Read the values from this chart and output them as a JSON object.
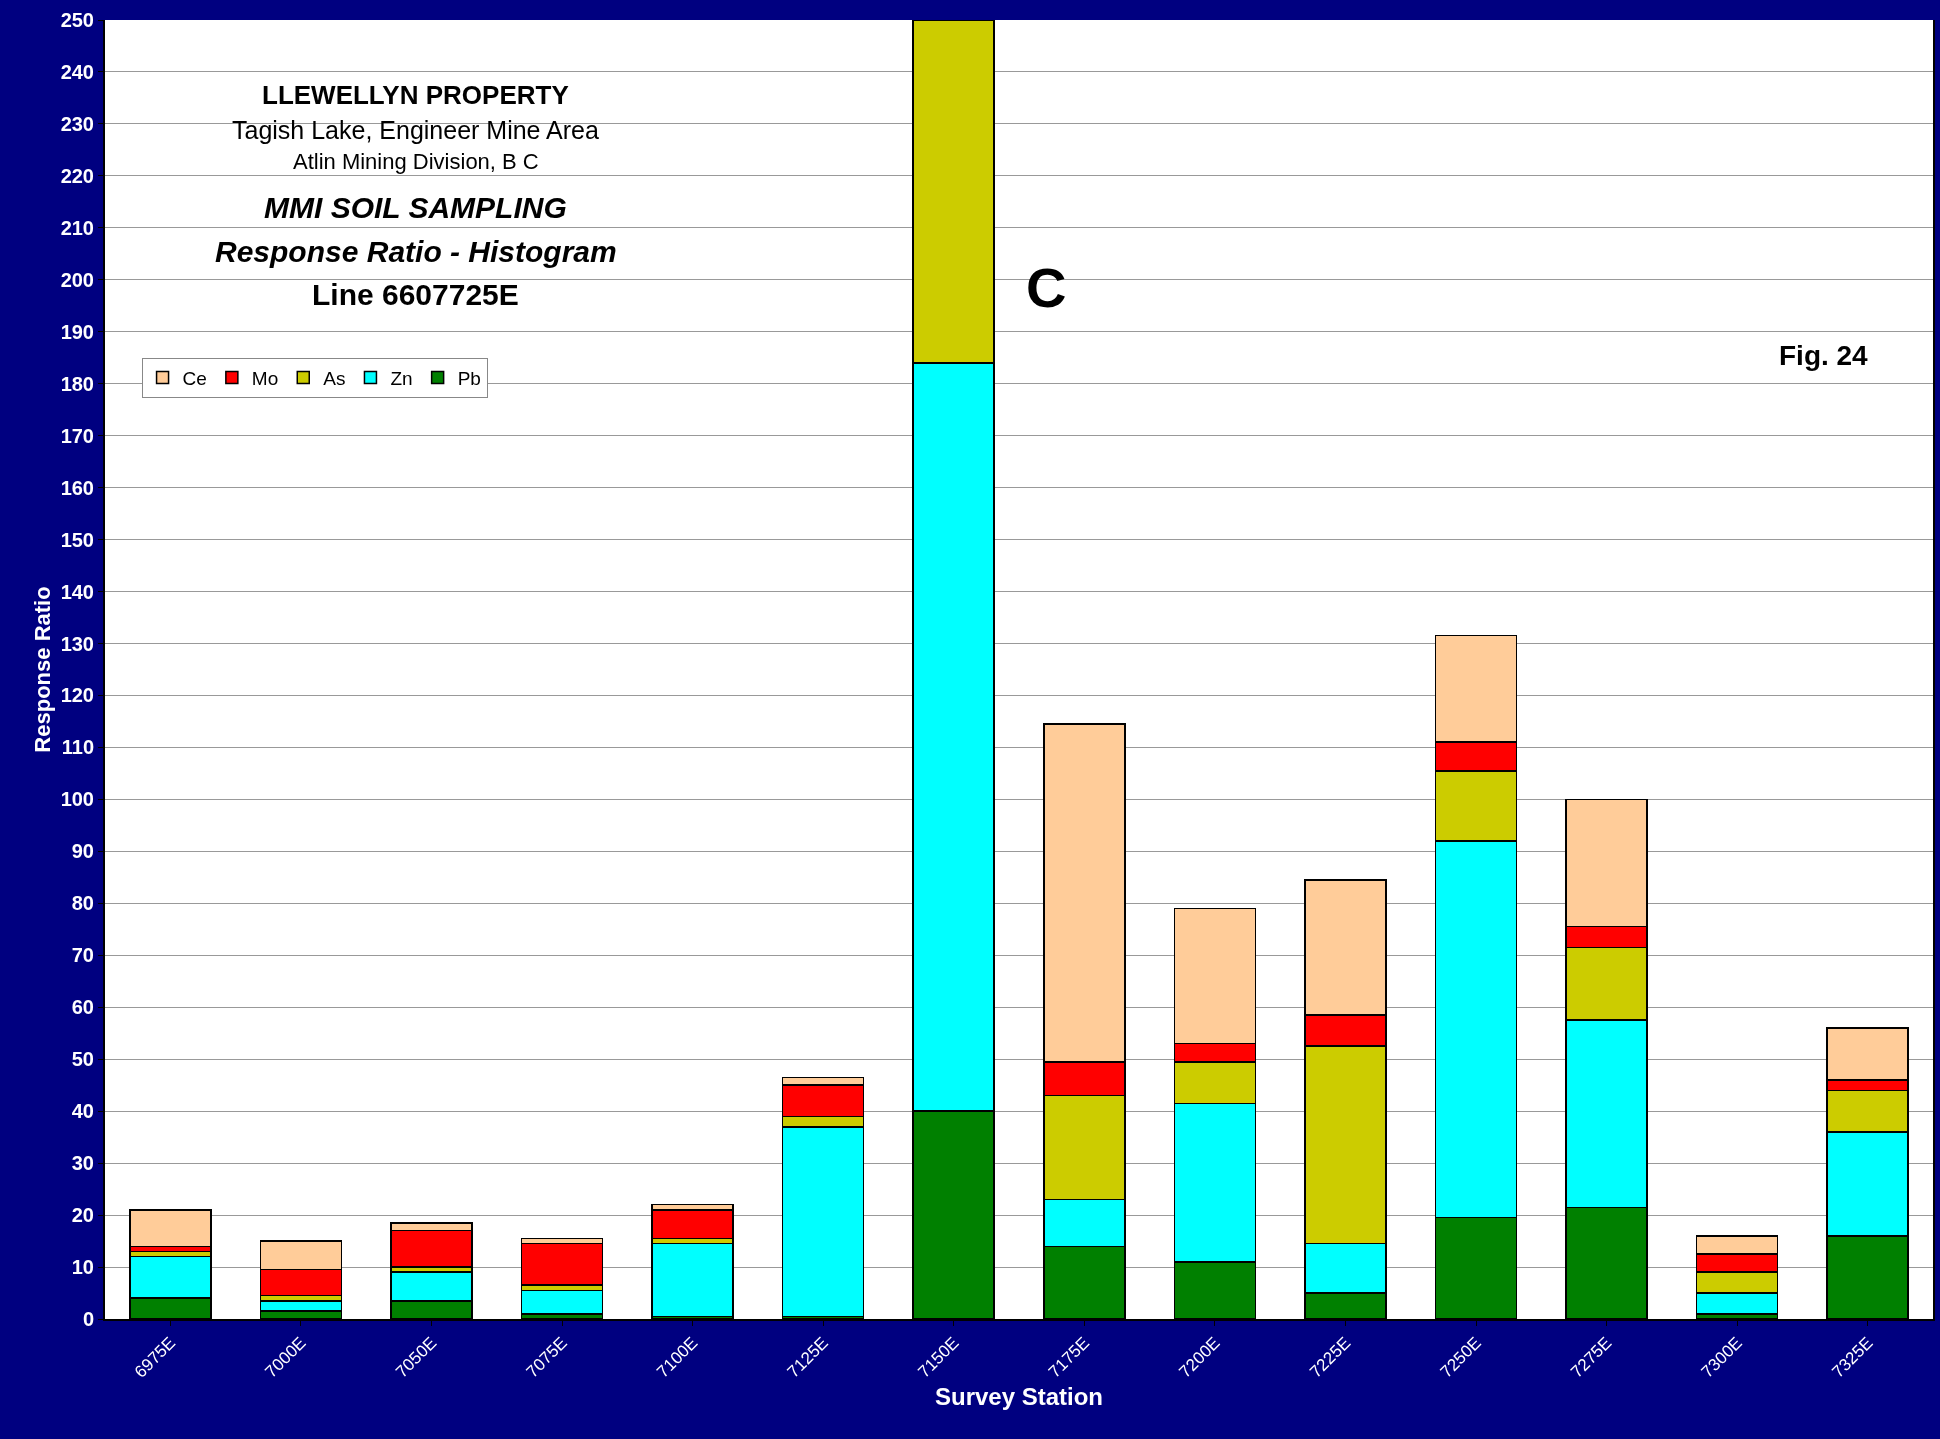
{
  "chart_data": {
    "type": "bar",
    "stacked": true,
    "title": "LLEWELLYN PROPERTY",
    "subtitle": "Tagish Lake, Engineer Mine Area\nAtlin Mining Division, B C",
    "xlabel": "Survey Station",
    "ylabel": "Response Ratio",
    "annotations": [
      "MMI SOIL SAMPLING",
      "Response Ratio - Histogram",
      "Line 6607725E",
      "C",
      "Fig. 24"
    ],
    "categories": [
      "6975E",
      "7000E",
      "7050E",
      "7075E",
      "7100E",
      "7125E",
      "7150E",
      "7175E",
      "7200E",
      "7225E",
      "7250E",
      "7275E",
      "7300E",
      "7325E"
    ],
    "series": [
      {
        "name": "Pb",
        "color": "#008000",
        "values": [
          4,
          1.5,
          3.5,
          1,
          0.5,
          0.5,
          40,
          14,
          11,
          5,
          19.5,
          21.5,
          1,
          16
        ]
      },
      {
        "name": "Zn",
        "color": "#00ffff",
        "values": [
          8,
          2,
          5.5,
          4.5,
          14,
          36.5,
          144,
          9,
          30.5,
          9.5,
          72.5,
          36,
          4,
          20
        ]
      },
      {
        "name": "As",
        "color": "#cccc00",
        "values": [
          1,
          1,
          1,
          1,
          1,
          2,
          66,
          20,
          8,
          38,
          13.5,
          14,
          4,
          8
        ]
      },
      {
        "name": "Mo",
        "color": "#ff0000",
        "values": [
          1,
          5,
          7,
          8,
          5.5,
          6,
          null,
          6.5,
          3.5,
          6,
          5.5,
          4,
          3.5,
          2
        ]
      },
      {
        "name": "Ce",
        "color": "#ffcc99",
        "values": [
          7,
          5.5,
          1.5,
          1,
          1,
          1.5,
          null,
          65,
          26,
          26,
          20.5,
          24.5,
          3.5,
          10
        ]
      }
    ],
    "ylim": [
      0,
      250
    ],
    "yticks": [
      0,
      10,
      20,
      30,
      40,
      50,
      60,
      70,
      80,
      90,
      100,
      110,
      120,
      130,
      140,
      150,
      160,
      170,
      180,
      190,
      200,
      210,
      220,
      230,
      240,
      250
    ],
    "grid": "y",
    "legend": "top left"
  }
}
